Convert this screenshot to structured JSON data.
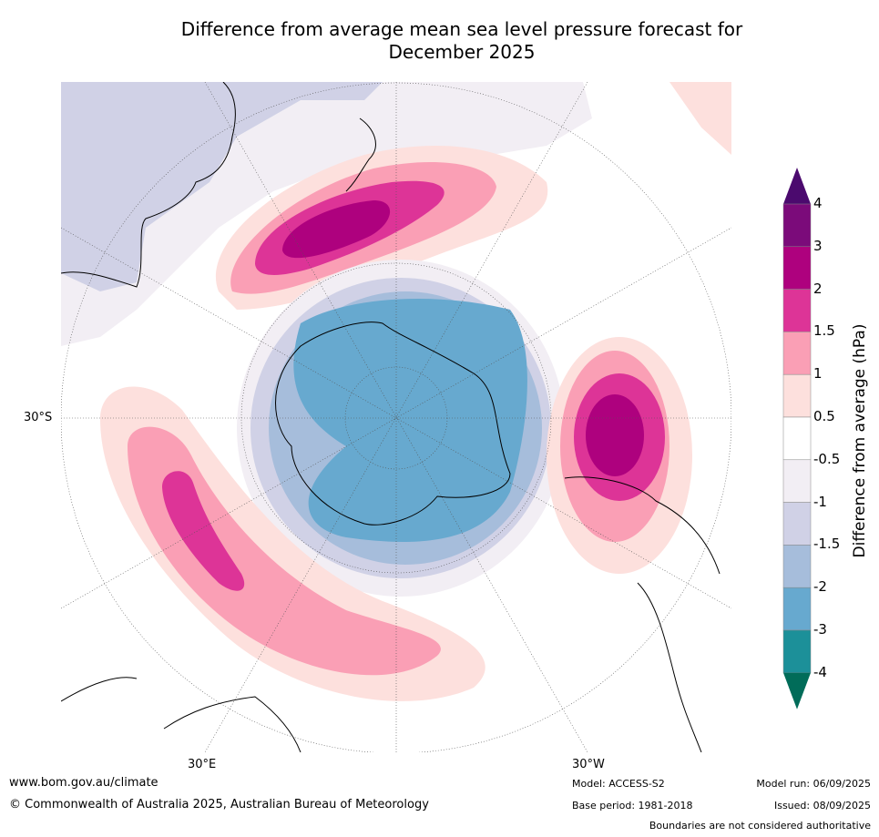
{
  "title_line1": "Difference from average mean sea level pressure forecast for",
  "title_line2": "December 2025",
  "lat_labels": {
    "left": "30°S",
    "bottom_left": "30°E",
    "bottom_right": "30°W"
  },
  "colorbar": {
    "title": "Difference from average (hPa)",
    "tick_labels": [
      "4",
      "3",
      "2",
      "1.5",
      "1",
      "0.5",
      "-0.5",
      "-1",
      "-1.5",
      "-2",
      "-3",
      "-4"
    ],
    "colors": [
      "#4b0a6e",
      "#7b0b7a",
      "#ae017e",
      "#dd3497",
      "#fa9fb5",
      "#fde0dd",
      "#ffffff",
      "#f2eef4",
      "#d0d1e6",
      "#a6bddb",
      "#67a9cf",
      "#1c9099",
      "#016c59"
    ]
  },
  "footer": {
    "url": "www.bom.gov.au/climate",
    "copyright": "© Commonwealth of Australia 2025, Australian Bureau of Meteorology",
    "model": "Model: ACCESS-S2",
    "base_period": "Base period: 1981-2018",
    "model_run": "Model run: 06/09/2025",
    "issued": "Issued: 08/09/2025",
    "disclaimer": "Boundaries are not considered authoritative"
  }
}
